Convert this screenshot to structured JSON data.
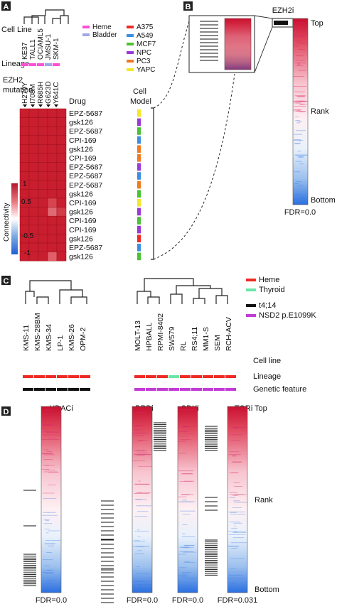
{
  "panels": {
    "a": {
      "label": "A",
      "row_labels": {
        "cell_line": "Cell Line",
        "lineage": "Lineage",
        "ezh2_line1": "EZH2",
        "ezh2_line2": "mutation"
      },
      "cell_lines": [
        "KE37",
        "TALL1",
        "OCIAML5",
        "JMSU-1",
        "SKM-1"
      ],
      "mutations": [
        "H279Y",
        "I708M",
        "R685H",
        "G623D",
        "Y641C"
      ],
      "lineage_legend": [
        {
          "label": "Heme",
          "color": "#ff4fd8"
        },
        {
          "label": "Bladder",
          "color": "#9fa6e6"
        }
      ],
      "lineage_colors": [
        "#ff4fd8",
        "#ff4fd8",
        "#ff4fd8",
        "#9fa6e6",
        "#ff4fd8"
      ],
      "model_legend": [
        {
          "label": "A375",
          "color": "#ee2a24"
        },
        {
          "label": "A549",
          "color": "#3b8fe0"
        },
        {
          "label": "MCF7",
          "color": "#49c233"
        },
        {
          "label": "NPC",
          "color": "#9a38d8"
        },
        {
          "label": "PC3",
          "color": "#f07a22"
        },
        {
          "label": "YAPC",
          "color": "#f5e62a"
        }
      ],
      "drug_header": "Drug",
      "model_header_line1": "Cell",
      "model_header_line2": "Model",
      "drugs": [
        "EPZ-5687",
        "gsk126",
        "EPZ-5687",
        "CPI-169",
        "gsk126",
        "CPI-169",
        "EPZ-5687",
        "EPZ-5687",
        "EPZ-5687",
        "gsk126",
        "CPI-169",
        "gsk126",
        "CPI-169",
        "CPI-169",
        "gsk126",
        "EPZ-5687",
        "gsk126"
      ],
      "models": [
        "YAPC",
        "NPC",
        "MCF7",
        "A549",
        "PC3",
        "PC3",
        "NPC",
        "A549",
        "PC3",
        "MCF7",
        "YAPC",
        "NPC",
        "MCF7",
        "NPC",
        "A375",
        "A549",
        "MCF7"
      ],
      "colorbar": {
        "title": "Connectivity",
        "ticks": [
          "1",
          "0.5",
          "-0.5",
          "-1"
        ],
        "min": -1,
        "max": 1
      }
    },
    "b": {
      "label": "B",
      "title": "EZH2i",
      "top": "Top",
      "rank": "Rank",
      "bottom": "Bottom",
      "fdr": "FDR=0.0"
    },
    "c": {
      "label": "C",
      "legend": [
        {
          "label": "Heme",
          "color": "#ee2a24"
        },
        {
          "label": "Thyroid",
          "color": "#67e6a8"
        },
        {
          "label": "t4;14",
          "color": "#111111"
        },
        {
          "label": "NSD2 p.E1099K",
          "color": "#c23bd6"
        }
      ],
      "group1": [
        "KMS-11",
        "KMS-28BM",
        "KMS-34",
        "LP-1",
        "KMS-26",
        "OPM-2"
      ],
      "group2": [
        "MOLT-13",
        "HPBALL",
        "RPMI-8402",
        "SW579",
        "RL",
        "RS4;11",
        "MM1-S",
        "SEM",
        "RCH-ACV"
      ],
      "lineage_colors_group1": [
        "#ee2a24",
        "#ee2a24",
        "#ee2a24",
        "#ee2a24",
        "#ee2a24",
        "#ee2a24"
      ],
      "lineage_colors_group2": [
        "#ee2a24",
        "#ee2a24",
        "#ee2a24",
        "#67e6a8",
        "#ee2a24",
        "#ee2a24",
        "#ee2a24",
        "#ee2a24",
        "#ee2a24"
      ],
      "genetic_color_group1": "#111111",
      "genetic_color_group2": "#c23bd6",
      "row_labels": [
        "Cell line",
        "Lineage",
        "Genetic feature"
      ]
    },
    "d": {
      "label": "D",
      "classes": [
        {
          "title": "HDACi",
          "fdr": "FDR=0.0"
        },
        {
          "title": "BRDi",
          "fdr": "FDR=0.0"
        },
        {
          "title": "CDKi",
          "fdr": "FDR=0.0"
        },
        {
          "title": "mTORi",
          "fdr": "FDR=0.031"
        }
      ],
      "top": "Top",
      "rank": "Rank",
      "bottom": "Bottom"
    }
  }
}
